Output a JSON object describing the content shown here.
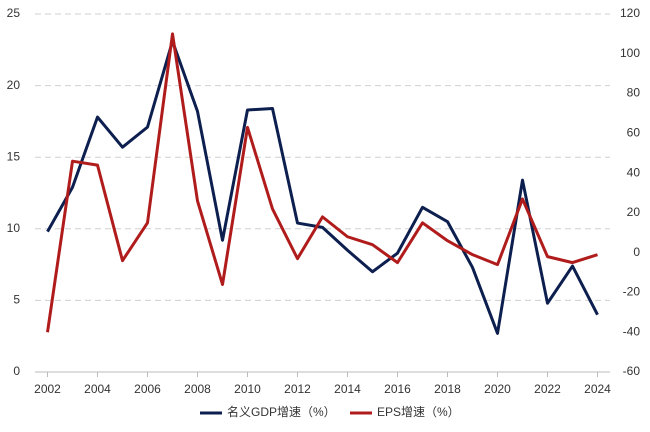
{
  "chart_data": {
    "type": "line",
    "x": [
      2002,
      2003,
      2004,
      2005,
      2006,
      2007,
      2008,
      2009,
      2010,
      2011,
      2012,
      2013,
      2014,
      2015,
      2016,
      2017,
      2018,
      2019,
      2020,
      2021,
      2022,
      2023,
      2024
    ],
    "series": [
      {
        "name": "名义GDP增速（%）",
        "color": "#0d1f4f",
        "values": [
          9.8,
          12.9,
          17.8,
          15.7,
          17.1,
          23.1,
          18.2,
          9.2,
          18.3,
          18.4,
          10.4,
          10.1,
          8.5,
          7.0,
          8.3,
          11.5,
          10.5,
          7.3,
          2.7,
          13.4,
          4.8,
          7.4,
          4.0
        ]
      },
      {
        "name": "EPS增速（%）",
        "color": "#b01c1c",
        "axis": "y2",
        "values": [
          -40,
          46,
          44,
          -4,
          15,
          110,
          26,
          -16,
          63,
          22,
          -3,
          18,
          8,
          4,
          -5,
          15,
          6,
          -1,
          -6,
          27,
          -2,
          -5,
          -1
        ]
      }
    ],
    "xlim": [
      2001.5,
      2024.5
    ],
    "xticks": [
      2002,
      2004,
      2006,
      2008,
      2010,
      2012,
      2014,
      2016,
      2018,
      2020,
      2022,
      2024
    ],
    "ylim": [
      0,
      25
    ],
    "yticks": [
      0,
      5,
      10,
      15,
      20,
      25
    ],
    "y2lim": [
      -60,
      120
    ],
    "y2ticks": [
      -60,
      -40,
      -20,
      0,
      20,
      40,
      60,
      80,
      100,
      120
    ],
    "grid": true,
    "legend": "bottom"
  }
}
